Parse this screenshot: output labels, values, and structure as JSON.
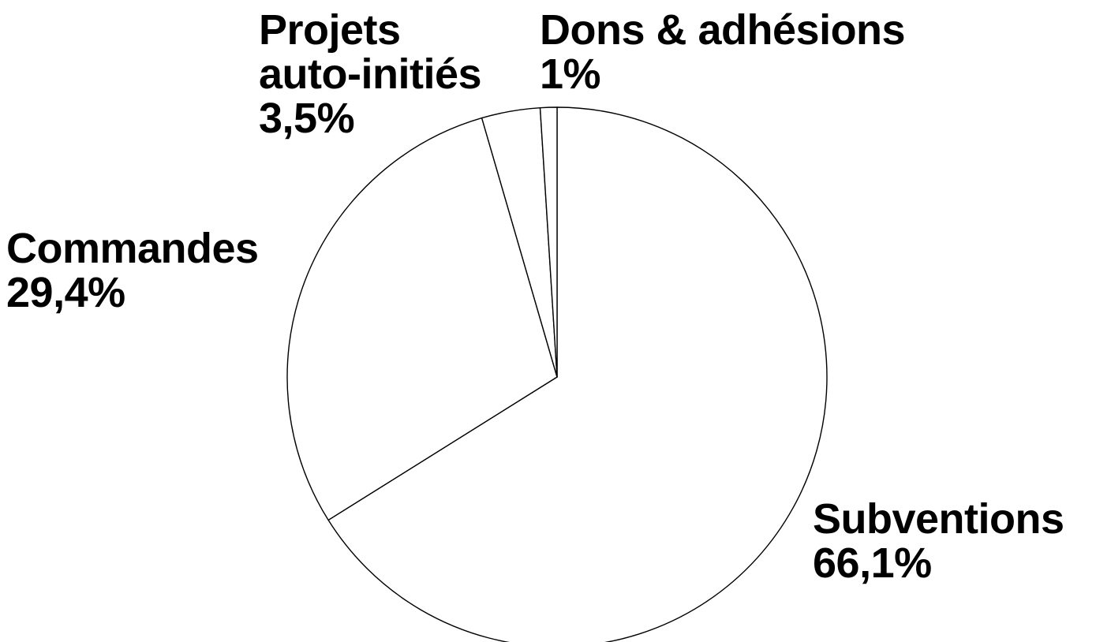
{
  "chart_data": {
    "type": "pie",
    "title": "",
    "start_angle_deg": 0,
    "direction": "clockwise",
    "colors": {
      "slice_fill": "#ffffff",
      "slice_stroke": "#000000",
      "text": "#000000"
    },
    "slices": [
      {
        "name": "Subventions",
        "value": 66.1,
        "value_label": "66,1%"
      },
      {
        "name": "Commandes",
        "value": 29.4,
        "value_label": "29,4%"
      },
      {
        "name": "Projets\nauto-initiés",
        "value": 3.5,
        "value_label": "3,5%"
      },
      {
        "name": "Dons & adhésions",
        "value": 1,
        "value_label": "1%"
      }
    ]
  }
}
